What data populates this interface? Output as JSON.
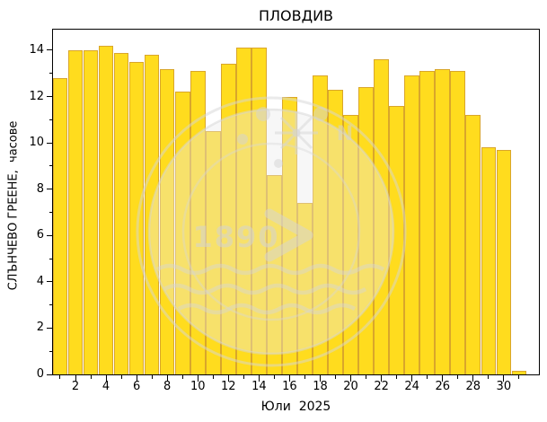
{
  "title": "ПЛОВДИВ",
  "xlabel": "Юли  2025",
  "ylabel": "СЛЪНЧЕВО ГРЕЕНЕ,  часове",
  "watermark": {
    "name": "nimh-bulgaria-logo-faded",
    "year_text": "1890",
    "compass_letter": "N"
  },
  "chart_data": {
    "type": "bar",
    "title": "ПЛОВДИВ",
    "xlabel": "Юли  2025",
    "ylabel": "СЛЪНЧЕВО ГРЕЕНЕ,  часове",
    "x_unit": "day of month",
    "y_unit": "часове (hours of sunshine)",
    "x": [
      1,
      2,
      3,
      4,
      5,
      6,
      7,
      8,
      9,
      10,
      11,
      12,
      13,
      14,
      15,
      16,
      17,
      18,
      19,
      20,
      21,
      22,
      23,
      24,
      25,
      26,
      27,
      28,
      29,
      30,
      31
    ],
    "values": [
      12.8,
      14.0,
      14.0,
      14.2,
      13.9,
      13.5,
      13.8,
      13.2,
      12.2,
      13.1,
      10.5,
      13.4,
      14.1,
      14.1,
      8.6,
      12.0,
      7.4,
      12.9,
      12.3,
      11.2,
      12.4,
      13.6,
      11.6,
      12.9,
      13.1,
      13.2,
      13.1,
      11.2,
      9.8,
      9.7,
      0.15
    ],
    "ylim": [
      0,
      14.89
    ],
    "yticks": [
      0,
      2,
      4,
      6,
      8,
      10,
      12,
      14
    ],
    "yticks_minor": [
      1,
      3,
      5,
      7,
      9,
      11,
      13
    ],
    "xticks_labeled": [
      2,
      4,
      6,
      8,
      10,
      12,
      14,
      16,
      18,
      20,
      22,
      24,
      26,
      28,
      30
    ],
    "grid": false,
    "legend": null,
    "bar_color": "#FFDC1E",
    "bar_edge_color": "#D9A62B",
    "axis_color": "#000000",
    "background_color": "#FFFFFF"
  }
}
